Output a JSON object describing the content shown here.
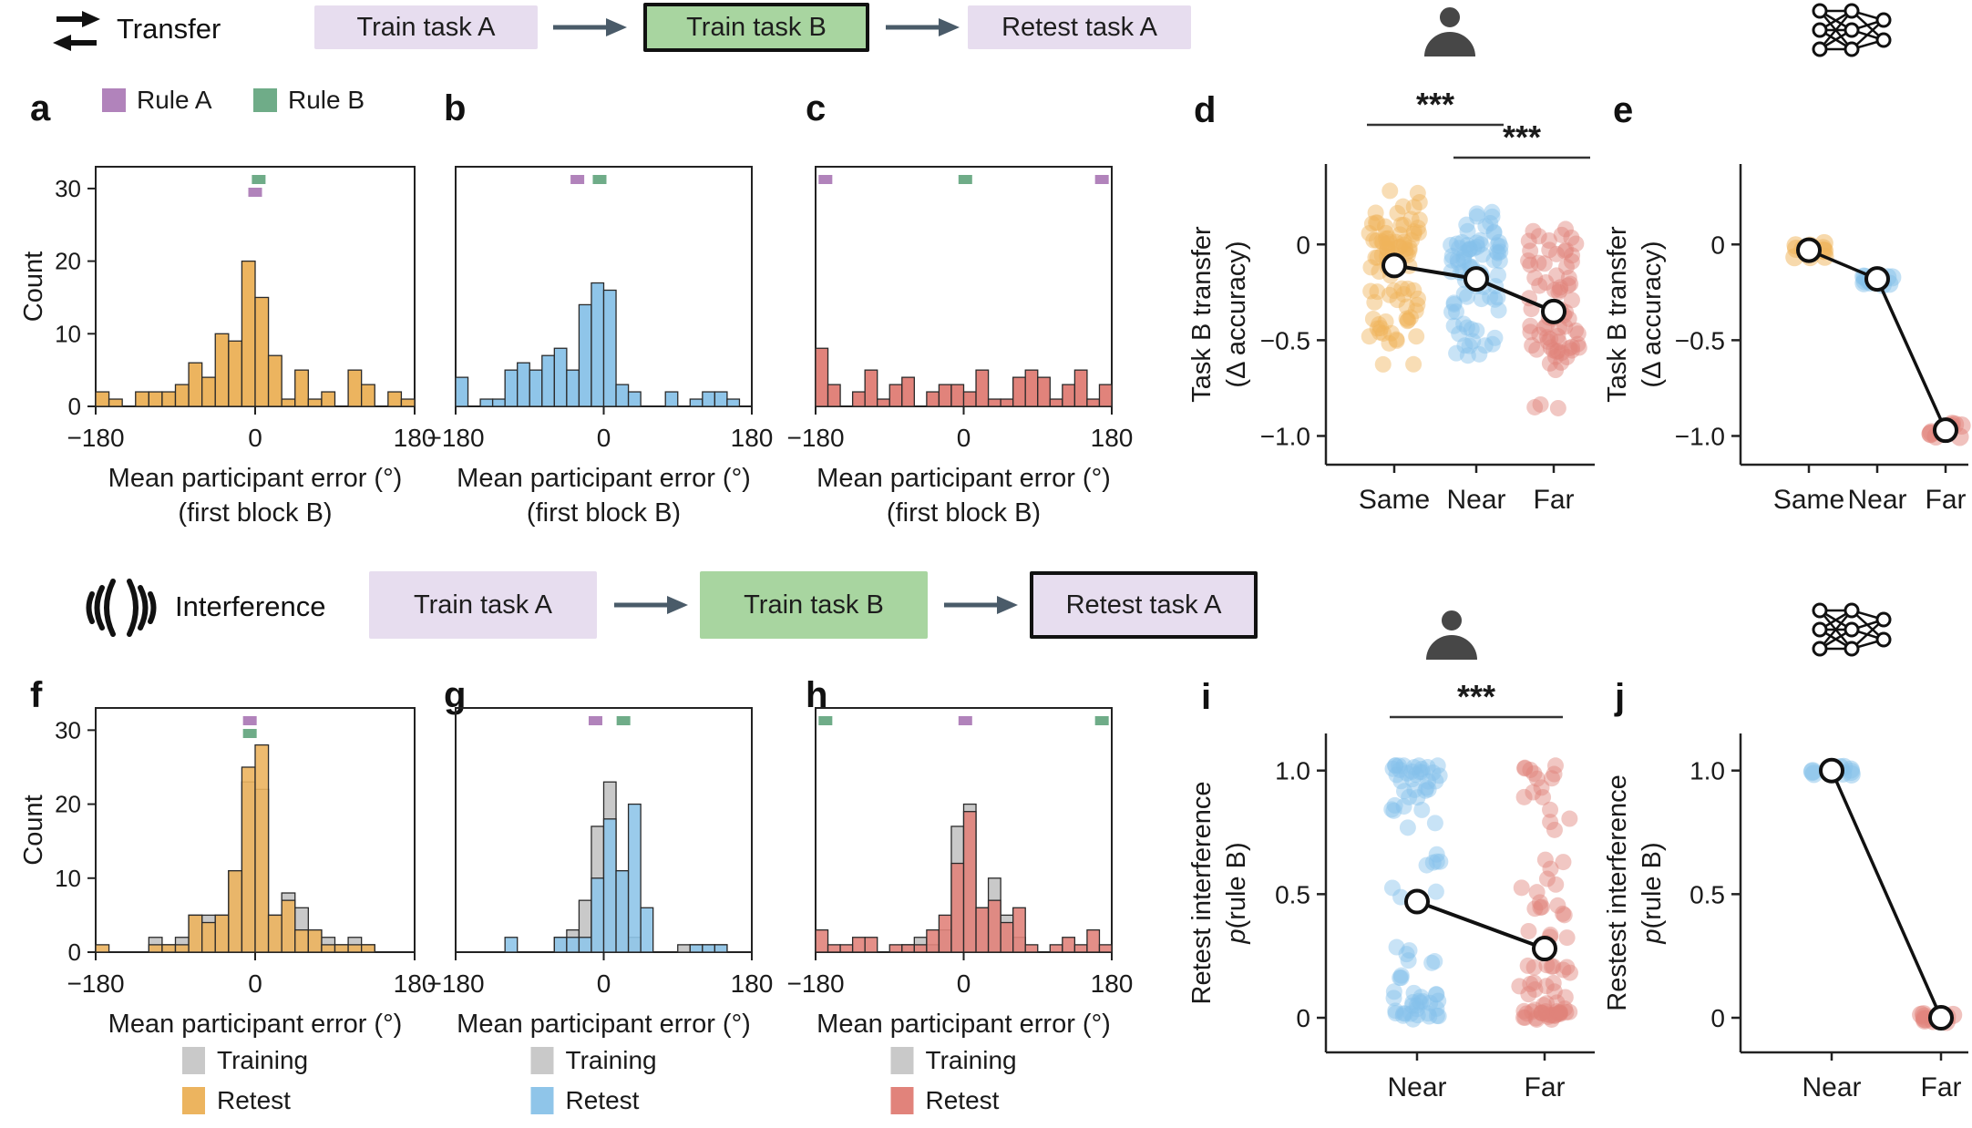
{
  "colors": {
    "rule_a_purple": "#b183bb",
    "rule_b_green": "#6fac88",
    "hist_orange": "#ecb45f",
    "hist_blue": "#8fc5e9",
    "hist_red": "#e1837b",
    "hist_gray": "#c9c9c9",
    "box_lavender": "#e7ddef",
    "box_green": "#a8d5a0",
    "arrow_gray": "#4a5b69",
    "icon_dark": "#474747"
  },
  "flows": {
    "transfer": {
      "label": "Transfer",
      "icon": "transfer-arrows-icon",
      "boxes": [
        {
          "label": "Train task A",
          "highlighted": false
        },
        {
          "label": "Train task B",
          "highlighted": true
        },
        {
          "label": "Retest task A",
          "highlighted": false
        }
      ]
    },
    "interference": {
      "label": "Interference",
      "icon": "interference-waves-icon",
      "boxes": [
        {
          "label": "Train task A",
          "highlighted": false
        },
        {
          "label": "Train task B",
          "highlighted": false
        },
        {
          "label": "Retest task A",
          "highlighted": true
        }
      ]
    }
  },
  "chart_data": {
    "bin_range_deg": {
      "min": -180,
      "max": 180,
      "bins": 24
    },
    "histograms": [
      {
        "id": "a",
        "letter": "a",
        "type": "bar",
        "ymax": 33,
        "ylabel": "Count",
        "yticks": [
          0,
          10,
          20,
          30
        ],
        "xticks": [
          {
            "v": -180,
            "label": "−180"
          },
          {
            "v": 0,
            "label": "0"
          },
          {
            "v": 180,
            "label": "180"
          }
        ],
        "xlabel_lines": [
          "Mean participant error (°)",
          "(first block B)"
        ],
        "series": [
          {
            "name": "first block B",
            "color": "#ecb45f",
            "values": [
              2,
              1,
              0,
              2,
              2,
              2,
              3,
              6,
              4,
              10,
              9,
              20,
              15,
              7,
              1,
              5,
              1,
              2,
              0,
              5,
              3,
              0,
              2,
              1
            ]
          }
        ],
        "rule_markers": [
          {
            "x": 4,
            "row": 0,
            "color": "#6fac88",
            "rule": "Rule B"
          },
          {
            "x": 0,
            "row": 1,
            "color": "#b183bb",
            "rule": "Rule A"
          }
        ],
        "top_legend": [
          {
            "label": "Rule A",
            "color": "#b183bb"
          },
          {
            "label": "Rule B",
            "color": "#6fac88"
          }
        ]
      },
      {
        "id": "b",
        "letter": "b",
        "type": "bar",
        "ymax": 33,
        "xticks": [
          {
            "v": -180,
            "label": "−180"
          },
          {
            "v": 0,
            "label": "0"
          },
          {
            "v": 180,
            "label": "180"
          }
        ],
        "xlabel_lines": [
          "Mean participant error (°)",
          "(first block B)"
        ],
        "series": [
          {
            "name": "first block B",
            "color": "#8fc5e9",
            "values": [
              4,
              0,
              1,
              1,
              5,
              6,
              5,
              7,
              8,
              5,
              14,
              17,
              16,
              3,
              2,
              0,
              0,
              2,
              0,
              1,
              2,
              2,
              1,
              0
            ]
          }
        ],
        "rule_markers": [
          {
            "x": -32,
            "row": 0,
            "color": "#b183bb",
            "rule": "Rule A"
          },
          {
            "x": -5,
            "row": 0,
            "color": "#6fac88",
            "rule": "Rule B"
          }
        ]
      },
      {
        "id": "c",
        "letter": "c",
        "type": "bar",
        "ymax": 33,
        "xticks": [
          {
            "v": -180,
            "label": "−180"
          },
          {
            "v": 0,
            "label": "0"
          },
          {
            "v": 180,
            "label": "180"
          }
        ],
        "xlabel_lines": [
          "Mean participant error (°)",
          "(first block B)"
        ],
        "series": [
          {
            "name": "first block B",
            "color": "#e1837b",
            "values": [
              8,
              3,
              0,
              2,
              5,
              1,
              3,
              4,
              0,
              2,
              3,
              3,
              2,
              5,
              1,
              1,
              4,
              5,
              4,
              1,
              3,
              5,
              1,
              3
            ]
          }
        ],
        "rule_markers": [
          {
            "x": -168,
            "row": 0,
            "color": "#b183bb",
            "rule": "Rule A"
          },
          {
            "x": 2,
            "row": 0,
            "color": "#6fac88",
            "rule": "Rule B"
          },
          {
            "x": 168,
            "row": 0,
            "color": "#b183bb",
            "rule": "Rule A"
          }
        ]
      },
      {
        "id": "f",
        "letter": "f",
        "type": "bar",
        "ymax": 33,
        "ylabel": "Count",
        "yticks": [
          0,
          10,
          20,
          30
        ],
        "xticks": [
          {
            "v": -180,
            "label": "−180"
          },
          {
            "v": 0,
            "label": "0"
          },
          {
            "v": 180,
            "label": "180"
          }
        ],
        "xlabel_lines": [
          "Mean participant error (°)"
        ],
        "series": [
          {
            "name": "Training",
            "color": "#c9c9c9",
            "values": [
              0,
              0,
              0,
              0,
              2,
              1,
              2,
              5,
              5,
              5,
              11,
              23,
              22,
              5,
              8,
              6,
              3,
              2,
              1,
              2,
              1,
              0,
              0,
              0
            ]
          },
          {
            "name": "Retest",
            "color": "#ecb45f",
            "values": [
              1,
              0,
              0,
              0,
              1,
              1,
              1,
              5,
              4,
              5,
              11,
              25,
              28,
              5,
              7,
              3,
              3,
              1,
              1,
              1,
              1,
              0,
              0,
              0
            ]
          }
        ],
        "rule_markers": [
          {
            "x": -6,
            "row": 0,
            "color": "#b183bb",
            "rule": "Rule A"
          },
          {
            "x": -6,
            "row": 1,
            "color": "#6fac88",
            "rule": "Rule B"
          }
        ],
        "bottom_legend": [
          {
            "label": "Training",
            "color": "#c9c9c9"
          },
          {
            "label": "Retest",
            "color": "#ecb45f"
          }
        ]
      },
      {
        "id": "g",
        "letter": "g",
        "type": "bar",
        "ymax": 33,
        "xticks": [
          {
            "v": -180,
            "label": "−180"
          },
          {
            "v": 0,
            "label": "0"
          },
          {
            "v": 180,
            "label": "180"
          }
        ],
        "xlabel_lines": [
          "Mean participant error (°)"
        ],
        "series": [
          {
            "name": "Training",
            "color": "#c9c9c9",
            "values": [
              0,
              0,
              0,
              0,
              0,
              0,
              0,
              0,
              2,
              3,
              7,
              17,
              23,
              11,
              2,
              0,
              0,
              0,
              1,
              1,
              1,
              1,
              0,
              0
            ]
          },
          {
            "name": "Retest",
            "color": "#8fc5e9",
            "values": [
              0,
              0,
              0,
              0,
              2,
              0,
              0,
              0,
              2,
              2,
              2,
              10,
              18,
              11,
              20,
              6,
              0,
              0,
              0,
              1,
              1,
              1,
              0,
              0
            ]
          }
        ],
        "rule_markers": [
          {
            "x": -10,
            "row": 0,
            "color": "#b183bb",
            "rule": "Rule A"
          },
          {
            "x": 24,
            "row": 0,
            "color": "#6fac88",
            "rule": "Rule B"
          }
        ],
        "bottom_legend": [
          {
            "label": "Training",
            "color": "#c9c9c9"
          },
          {
            "label": "Retest",
            "color": "#8fc5e9"
          }
        ]
      },
      {
        "id": "h",
        "letter": "h",
        "type": "bar",
        "ymax": 33,
        "xticks": [
          {
            "v": -180,
            "label": "−180"
          },
          {
            "v": 0,
            "label": "0"
          },
          {
            "v": 180,
            "label": "180"
          }
        ],
        "xlabel_lines": [
          "Mean participant error (°)"
        ],
        "series": [
          {
            "name": "Training",
            "color": "#c9c9c9",
            "values": [
              0,
              0,
              0,
              0,
              0,
              0,
              0,
              1,
              2,
              1,
              3,
              17,
              20,
              6,
              10,
              5,
              2,
              0,
              0,
              0,
              0,
              0,
              0,
              0
            ]
          },
          {
            "name": "Retest",
            "color": "#e1837b",
            "values": [
              3,
              1,
              1,
              2,
              2,
              0,
              1,
              1,
              1,
              3,
              5,
              12,
              19,
              6,
              7,
              4,
              6,
              1,
              0,
              1,
              2,
              1,
              3,
              1
            ]
          }
        ],
        "rule_markers": [
          {
            "x": -168,
            "row": 0,
            "color": "#6fac88",
            "rule": "Rule B"
          },
          {
            "x": 2,
            "row": 0,
            "color": "#b183bb",
            "rule": "Rule A"
          },
          {
            "x": 168,
            "row": 0,
            "color": "#6fac88",
            "rule": "Rule B"
          }
        ],
        "bottom_legend": [
          {
            "label": "Training",
            "color": "#c9c9c9"
          },
          {
            "label": "Retest",
            "color": "#e1837b"
          }
        ]
      }
    ],
    "strips": [
      {
        "id": "d",
        "letter": "d",
        "type": "scatter",
        "agent": "human",
        "ylabel_lines": [
          {
            "text": "Task B transfer"
          },
          {
            "text": "(Δ accuracy)"
          }
        ],
        "yticks": [
          {
            "v": 0,
            "label": "0"
          },
          {
            "v": -0.5,
            "label": "−0.5"
          },
          {
            "v": -1.0,
            "label": "−1.0"
          }
        ],
        "ylim": [
          -1.15,
          0.42
        ],
        "categories": [
          {
            "label": "Same",
            "color": "#f0b45a",
            "mean": -0.11,
            "err": 0.025,
            "clusters": [
              [
                -0.02,
                0.09,
                40
              ],
              [
                -0.25,
                0.12,
                25
              ],
              [
                0.15,
                0.08,
                12
              ],
              [
                -0.45,
                0.06,
                10
              ],
              [
                -0.62,
                0.01,
                2
              ]
            ]
          },
          {
            "label": "Near",
            "color": "#85c1ea",
            "mean": -0.18,
            "err": 0.025,
            "clusters": [
              [
                -0.05,
                0.09,
                35
              ],
              [
                -0.3,
                0.12,
                28
              ],
              [
                0.1,
                0.07,
                10
              ],
              [
                -0.5,
                0.04,
                8
              ]
            ]
          },
          {
            "label": "Far",
            "color": "#e1837b",
            "mean": -0.35,
            "err": 0.025,
            "clusters": [
              [
                -0.15,
                0.1,
                24
              ],
              [
                -0.42,
                0.1,
                28
              ],
              [
                -0.58,
                0.06,
                12
              ],
              [
                0.02,
                0.08,
                8
              ],
              [
                -0.86,
                0.03,
                3
              ]
            ]
          }
        ],
        "brackets": [
          {
            "a": 0,
            "b": 1,
            "label": "***"
          },
          {
            "a": 1,
            "b": 2,
            "label": "***"
          }
        ]
      },
      {
        "id": "i",
        "letter": "i",
        "type": "scatter",
        "agent": "human",
        "ylabel_lines": [
          {
            "text": "Retest interference"
          },
          {
            "italic_prefix": "p",
            "text": "(rule B)"
          }
        ],
        "yticks": [
          {
            "v": 1.0,
            "label": "1.0"
          },
          {
            "v": 0.5,
            "label": "0.5"
          },
          {
            "v": 0,
            "label": "0"
          }
        ],
        "ylim": [
          -0.14,
          1.15
        ],
        "categories": [
          {
            "label": "Near",
            "color": "#85c1ea",
            "mean": 0.47,
            "err": 0.05,
            "clusters": [
              [
                1.0,
                0.02,
                20
              ],
              [
                0.93,
                0.025,
                10
              ],
              [
                0.84,
                0.02,
                5
              ],
              [
                0.78,
                0.01,
                2
              ],
              [
                0.64,
                0.02,
                5
              ],
              [
                0.51,
                0.03,
                3
              ],
              [
                0.25,
                0.03,
                6
              ],
              [
                0.18,
                0.02,
                3
              ],
              [
                0.04,
                0.03,
                28
              ]
            ]
          },
          {
            "label": "Far",
            "color": "#e1837b",
            "mean": 0.28,
            "err": 0.05,
            "clusters": [
              [
                1.0,
                0.02,
                7
              ],
              [
                0.92,
                0.025,
                5
              ],
              [
                0.8,
                0.03,
                4
              ],
              [
                0.57,
                0.04,
                7
              ],
              [
                0.45,
                0.04,
                7
              ],
              [
                0.32,
                0.03,
                5
              ],
              [
                0.2,
                0.03,
                8
              ],
              [
                0.1,
                0.03,
                10
              ],
              [
                0.02,
                0.02,
                30
              ]
            ]
          }
        ],
        "brackets": [
          {
            "a": 0,
            "b": 1,
            "label": "***"
          }
        ]
      }
    ],
    "lines": [
      {
        "id": "e",
        "letter": "e",
        "type": "line",
        "agent": "model",
        "ylabel_lines": [
          {
            "text": "Task B transfer"
          },
          {
            "text": "(Δ accuracy)"
          }
        ],
        "yticks": [
          {
            "v": 0,
            "label": "0"
          },
          {
            "v": -0.5,
            "label": "−0.5"
          },
          {
            "v": -1.0,
            "label": "−1.0"
          }
        ],
        "ylim": [
          -1.15,
          0.42
        ],
        "categories": [
          {
            "label": "Same",
            "color": "#f0b45a",
            "value": -0.03
          },
          {
            "label": "Near",
            "color": "#85c1ea",
            "value": -0.18
          },
          {
            "label": "Far",
            "color": "#e1837b",
            "value": -0.97
          }
        ]
      },
      {
        "id": "j",
        "letter": "j",
        "type": "line",
        "agent": "model",
        "ylabel_lines": [
          {
            "text": "Restest interference"
          },
          {
            "italic_prefix": "p",
            "text": "(rule B)"
          }
        ],
        "yticks": [
          {
            "v": 1.0,
            "label": "1.0"
          },
          {
            "v": 0.5,
            "label": "0.5"
          },
          {
            "v": 0,
            "label": "0"
          }
        ],
        "ylim": [
          -0.14,
          1.15
        ],
        "categories": [
          {
            "label": "Near",
            "color": "#85c1ea",
            "value": 1.0
          },
          {
            "label": "Far",
            "color": "#e1837b",
            "value": 0.0
          }
        ]
      }
    ]
  }
}
